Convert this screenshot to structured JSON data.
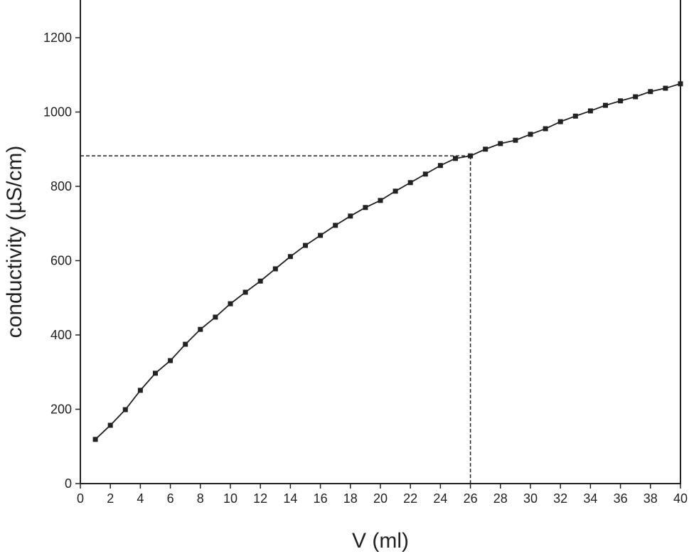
{
  "chart_data": {
    "type": "line",
    "title": "",
    "xlabel": "V (ml)",
    "ylabel": "conductivity (µS/cm)",
    "xlim": [
      0,
      40
    ],
    "ylim": [
      0,
      1200
    ],
    "xticks": [
      0,
      2,
      4,
      6,
      8,
      10,
      12,
      14,
      16,
      18,
      20,
      22,
      24,
      26,
      28,
      30,
      32,
      34,
      36,
      38,
      40
    ],
    "yticks": [
      0,
      200,
      400,
      600,
      800,
      1000,
      1200
    ],
    "grid": false,
    "series": [
      {
        "name": "conductivity",
        "marker": "square",
        "color": "#222222",
        "x": [
          1,
          2,
          3,
          4,
          5,
          6,
          7,
          8,
          9,
          10,
          11,
          12,
          13,
          14,
          15,
          16,
          17,
          18,
          19,
          20,
          21,
          22,
          23,
          24,
          25,
          26,
          27,
          28,
          29,
          30,
          31,
          32,
          33,
          34,
          35,
          36,
          37,
          38,
          39,
          40
        ],
        "y": [
          119,
          157,
          199,
          251,
          297,
          331,
          375,
          415,
          448,
          484,
          515,
          545,
          578,
          611,
          641,
          668,
          695,
          720,
          743,
          762,
          787,
          810,
          833,
          856,
          875,
          882,
          900,
          915,
          924,
          940,
          955,
          974,
          989,
          1003,
          1018,
          1030,
          1041,
          1055,
          1064,
          1076
        ]
      }
    ],
    "annotations": [
      {
        "type": "dashed-guide",
        "x": 26,
        "y": 882
      }
    ]
  }
}
